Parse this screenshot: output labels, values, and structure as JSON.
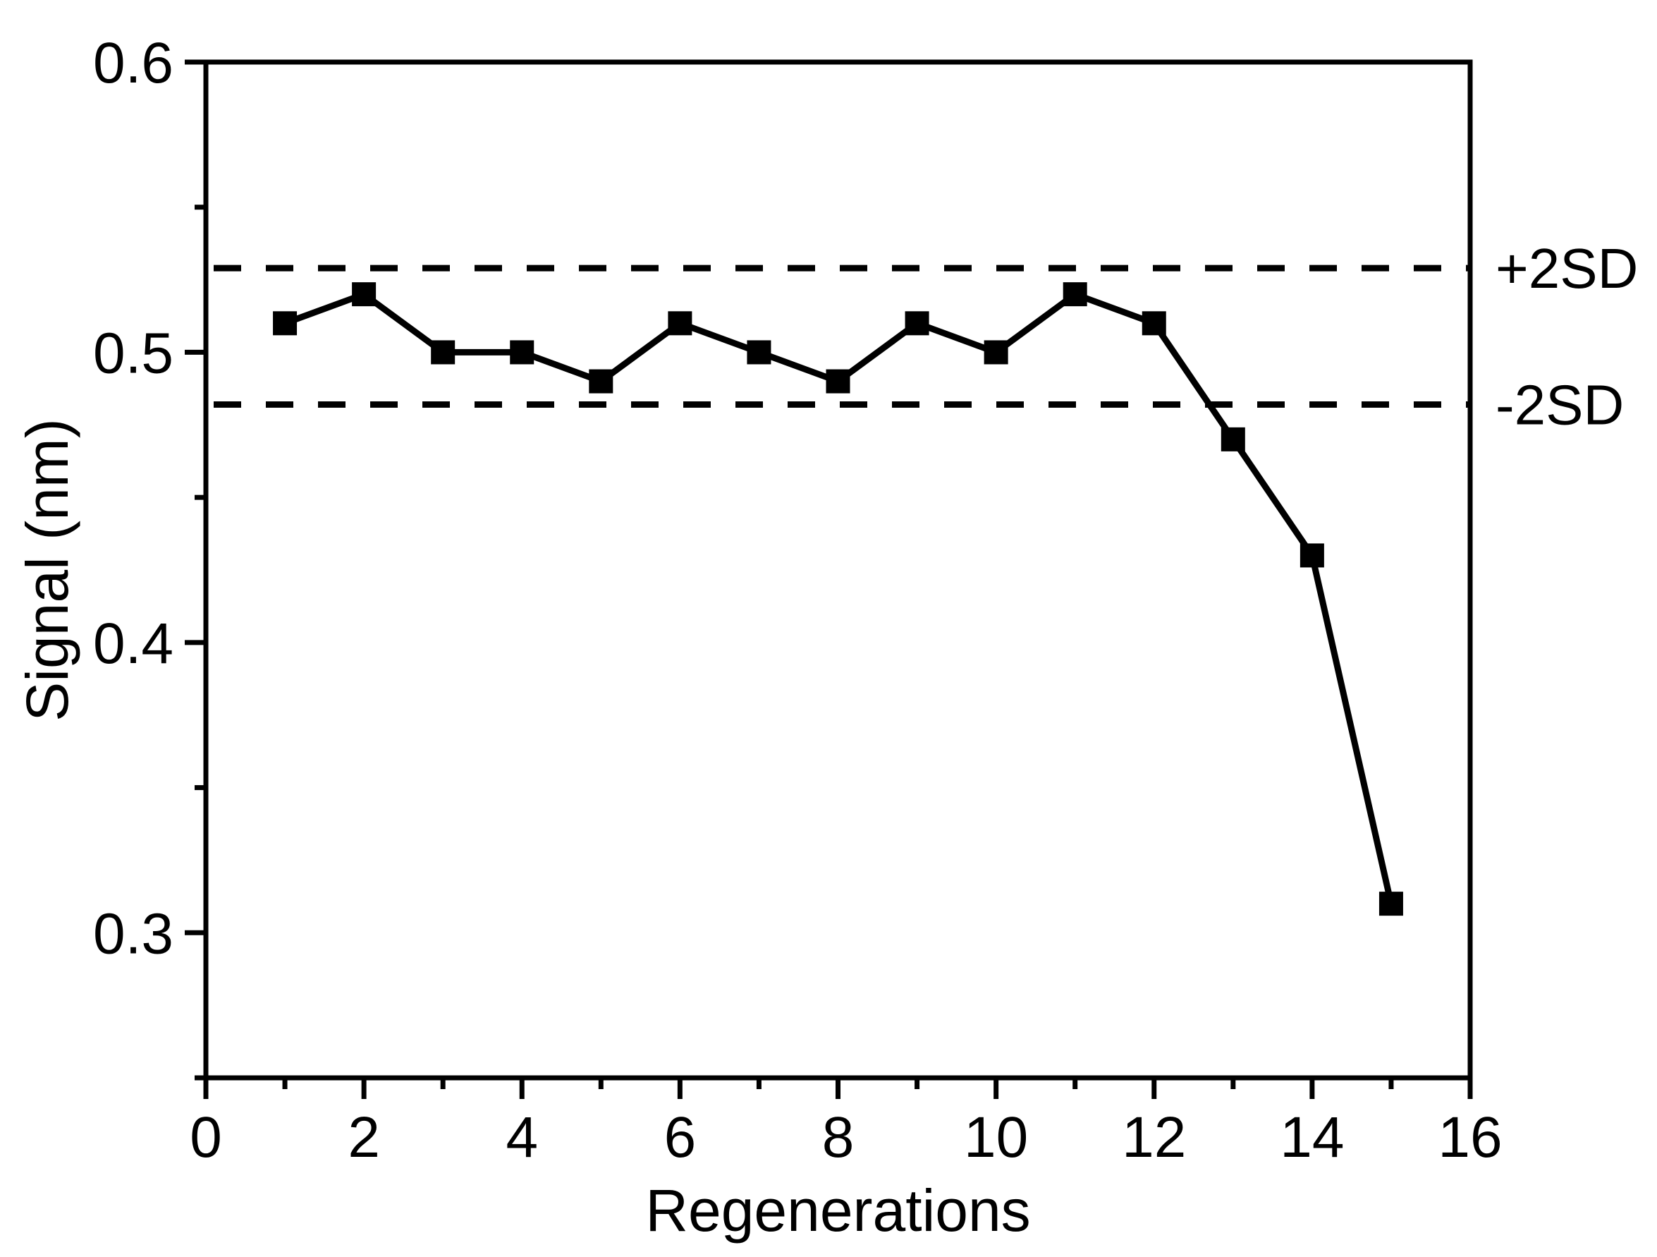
{
  "figure": {
    "background": "#ffffff",
    "foreground": "#000000"
  },
  "chart_data": {
    "type": "line",
    "title": "",
    "xlabel": "Regenerations",
    "ylabel": "Signal (nm)",
    "x": [
      1,
      2,
      3,
      4,
      5,
      6,
      7,
      8,
      9,
      10,
      11,
      12,
      13,
      14,
      15
    ],
    "y": [
      0.51,
      0.52,
      0.5,
      0.5,
      0.49,
      0.51,
      0.5,
      0.49,
      0.51,
      0.5,
      0.52,
      0.51,
      0.47,
      0.43,
      0.31
    ],
    "marker": "square",
    "line_color": "#000000",
    "marker_color": "#000000",
    "xlim": [
      0,
      16
    ],
    "ylim": [
      0.25,
      0.6
    ],
    "x_major_ticks": [
      0,
      2,
      4,
      6,
      8,
      10,
      12,
      14,
      16
    ],
    "x_tick_labels": [
      "0",
      "2",
      "4",
      "6",
      "8",
      "10",
      "12",
      "14",
      "16"
    ],
    "x_minor_ticks": [
      1,
      3,
      5,
      7,
      9,
      11,
      13,
      15
    ],
    "y_major_ticks": [
      0.3,
      0.4,
      0.5,
      0.6
    ],
    "y_tick_labels": [
      "0.3",
      "0.4",
      "0.5",
      "0.6"
    ],
    "y_minor_ticks": [
      0.25,
      0.35,
      0.45,
      0.55
    ],
    "reference_lines": [
      {
        "label": "+2SD",
        "value": 0.529,
        "style": "dashed"
      },
      {
        "label": "-2SD",
        "value": 0.482,
        "style": "dashed"
      }
    ],
    "grid": false,
    "legend_position": "none"
  }
}
